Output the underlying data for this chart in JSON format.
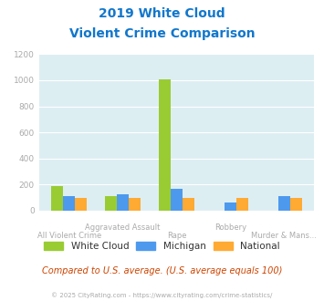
{
  "title_line1": "2019 White Cloud",
  "title_line2": "Violent Crime Comparison",
  "categories": [
    "All Violent Crime",
    "Aggravated Assault",
    "Rape",
    "Robbery",
    "Murder & Mans..."
  ],
  "xtick_top": [
    "",
    "Aggravated Assault",
    "",
    "Robbery",
    ""
  ],
  "xtick_bottom": [
    "All Violent Crime",
    "",
    "Rape",
    "",
    "Murder & Mans..."
  ],
  "white_cloud": [
    190,
    115,
    1010,
    0,
    0
  ],
  "michigan": [
    115,
    125,
    165,
    65,
    115
  ],
  "national": [
    98,
    95,
    98,
    98,
    95
  ],
  "bar_colors": [
    "#99cc33",
    "#4d99ee",
    "#ffaa33"
  ],
  "legend_labels": [
    "White Cloud",
    "Michigan",
    "National"
  ],
  "ylim": [
    0,
    1200
  ],
  "yticks": [
    0,
    200,
    400,
    600,
    800,
    1000,
    1200
  ],
  "bg_color": "#ddeef3",
  "title_color": "#1177cc",
  "tick_color": "#aaaaaa",
  "footer_text": "Compared to U.S. average. (U.S. average equals 100)",
  "copyright_text": "© 2025 CityRating.com - https://www.cityrating.com/crime-statistics/",
  "bar_width": 0.22
}
